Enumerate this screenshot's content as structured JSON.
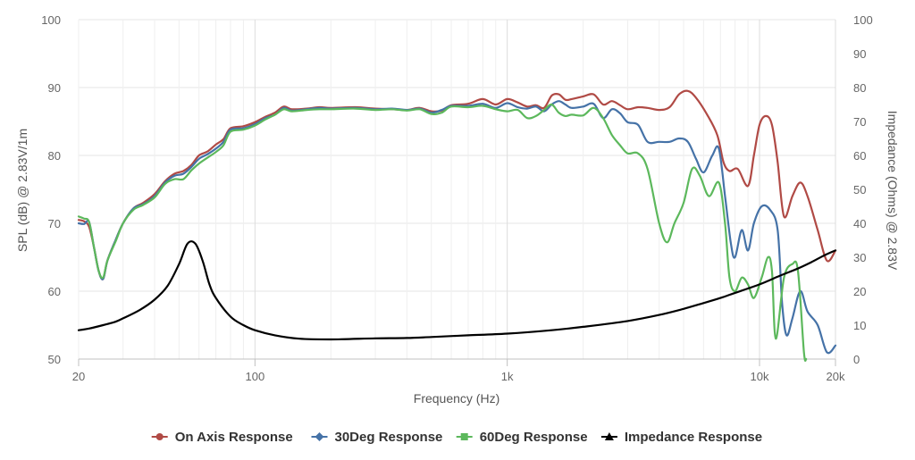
{
  "chart_data": {
    "type": "line",
    "xlabel": "Frequency (Hz)",
    "ylabel_left": "SPL (dB) @ 2.83V/1m",
    "ylabel_right": "Impedance (Ohms) @ 2.83V",
    "x_scale": "log",
    "xlim": [
      20,
      20000
    ],
    "ylim_left": [
      50,
      100
    ],
    "ylim_right": [
      0,
      100
    ],
    "x_ticks": [
      {
        "value": 20,
        "label": "20"
      },
      {
        "value": 100,
        "label": "100"
      },
      {
        "value": 1000,
        "label": "1k"
      },
      {
        "value": 10000,
        "label": "10k"
      },
      {
        "value": 20000,
        "label": "20k"
      }
    ],
    "y_ticks_left": [
      "50",
      "60",
      "70",
      "80",
      "90",
      "100"
    ],
    "y_ticks_right": [
      "0",
      "10",
      "20",
      "30",
      "40",
      "50",
      "60",
      "70",
      "80",
      "90",
      "100"
    ],
    "grid": true,
    "legend_position": "bottom",
    "series": [
      {
        "name": "On Axis Response",
        "color": "#b04a45",
        "marker": "circle",
        "axis": "left",
        "points": [
          [
            20,
            70.5
          ],
          [
            21,
            70.3
          ],
          [
            22,
            69.5
          ],
          [
            23,
            66.5
          ],
          [
            24,
            63
          ],
          [
            25,
            61.8
          ],
          [
            26,
            64.5
          ],
          [
            28,
            67.5
          ],
          [
            30,
            70
          ],
          [
            33,
            72.2
          ],
          [
            36,
            73
          ],
          [
            40,
            74.3
          ],
          [
            44,
            76.2
          ],
          [
            48,
            77.3
          ],
          [
            52,
            77.7
          ],
          [
            56,
            78.6
          ],
          [
            60,
            80
          ],
          [
            65,
            80.6
          ],
          [
            70,
            81.6
          ],
          [
            75,
            82.4
          ],
          [
            80,
            84
          ],
          [
            90,
            84.3
          ],
          [
            100,
            84.9
          ],
          [
            110,
            85.7
          ],
          [
            120,
            86.3
          ],
          [
            130,
            87.2
          ],
          [
            140,
            86.8
          ],
          [
            160,
            86.9
          ],
          [
            180,
            87.1
          ],
          [
            200,
            87
          ],
          [
            250,
            87.1
          ],
          [
            300,
            86.9
          ],
          [
            350,
            86.8
          ],
          [
            400,
            86.7
          ],
          [
            450,
            87
          ],
          [
            500,
            86.5
          ],
          [
            550,
            86.6
          ],
          [
            600,
            87.4
          ],
          [
            700,
            87.6
          ],
          [
            800,
            88.3
          ],
          [
            900,
            87.5
          ],
          [
            1000,
            88.3
          ],
          [
            1100,
            87.8
          ],
          [
            1200,
            87.2
          ],
          [
            1300,
            87.4
          ],
          [
            1400,
            87
          ],
          [
            1500,
            88.8
          ],
          [
            1600,
            89
          ],
          [
            1700,
            88.2
          ],
          [
            1800,
            88.3
          ],
          [
            2000,
            88.7
          ],
          [
            2200,
            89
          ],
          [
            2400,
            87.5
          ],
          [
            2600,
            88
          ],
          [
            2800,
            87.4
          ],
          [
            3000,
            86.8
          ],
          [
            3300,
            87.1
          ],
          [
            3600,
            87
          ],
          [
            4000,
            86.7
          ],
          [
            4400,
            87.1
          ],
          [
            4800,
            89
          ],
          [
            5200,
            89.5
          ],
          [
            5600,
            88.5
          ],
          [
            6200,
            86
          ],
          [
            6800,
            83
          ],
          [
            7200,
            79
          ],
          [
            7600,
            77.7
          ],
          [
            8200,
            78
          ],
          [
            9000,
            75.5
          ],
          [
            9500,
            80
          ],
          [
            10000,
            84.5
          ],
          [
            10600,
            85.8
          ],
          [
            11200,
            84.5
          ],
          [
            11800,
            79
          ],
          [
            12500,
            71
          ],
          [
            13500,
            74
          ],
          [
            14500,
            76
          ],
          [
            15500,
            74
          ],
          [
            17000,
            69
          ],
          [
            18500,
            64.5
          ],
          [
            20000,
            66
          ]
        ]
      },
      {
        "name": "30Deg Response",
        "color": "#4572a7",
        "marker": "diamond",
        "axis": "left",
        "points": [
          [
            20,
            70
          ],
          [
            21,
            69.9
          ],
          [
            22,
            70.2
          ],
          [
            23,
            66.5
          ],
          [
            24,
            63
          ],
          [
            25,
            61.8
          ],
          [
            26,
            64.5
          ],
          [
            28,
            67.5
          ],
          [
            30,
            70
          ],
          [
            33,
            72.2
          ],
          [
            36,
            72.8
          ],
          [
            40,
            74
          ],
          [
            44,
            76
          ],
          [
            48,
            77
          ],
          [
            52,
            77.3
          ],
          [
            56,
            78.3
          ],
          [
            60,
            79.5
          ],
          [
            65,
            80.2
          ],
          [
            70,
            81
          ],
          [
            75,
            82
          ],
          [
            80,
            83.8
          ],
          [
            90,
            84
          ],
          [
            100,
            84.6
          ],
          [
            110,
            85.5
          ],
          [
            120,
            86
          ],
          [
            130,
            87
          ],
          [
            140,
            86.6
          ],
          [
            160,
            86.8
          ],
          [
            180,
            87
          ],
          [
            200,
            86.9
          ],
          [
            250,
            87
          ],
          [
            300,
            86.8
          ],
          [
            350,
            86.9
          ],
          [
            400,
            86.7
          ],
          [
            450,
            86.9
          ],
          [
            500,
            86.3
          ],
          [
            550,
            86.7
          ],
          [
            600,
            87.3
          ],
          [
            700,
            87.3
          ],
          [
            800,
            87.6
          ],
          [
            900,
            87
          ],
          [
            1000,
            87.7
          ],
          [
            1100,
            87.1
          ],
          [
            1200,
            86.9
          ],
          [
            1300,
            87.2
          ],
          [
            1400,
            86.5
          ],
          [
            1500,
            87.5
          ],
          [
            1600,
            88
          ],
          [
            1700,
            87.5
          ],
          [
            1800,
            87
          ],
          [
            2000,
            87.2
          ],
          [
            2200,
            87.6
          ],
          [
            2400,
            85.5
          ],
          [
            2600,
            86.8
          ],
          [
            2800,
            86.2
          ],
          [
            3000,
            84.9
          ],
          [
            3300,
            84.5
          ],
          [
            3600,
            82
          ],
          [
            4000,
            82
          ],
          [
            4400,
            82
          ],
          [
            4800,
            82.5
          ],
          [
            5200,
            82
          ],
          [
            5600,
            79.5
          ],
          [
            6000,
            77.5
          ],
          [
            6500,
            80
          ],
          [
            6900,
            81
          ],
          [
            7300,
            74
          ],
          [
            7700,
            67
          ],
          [
            8000,
            65
          ],
          [
            8500,
            69
          ],
          [
            9000,
            66
          ],
          [
            9500,
            70
          ],
          [
            10200,
            72.5
          ],
          [
            11000,
            72
          ],
          [
            11800,
            69
          ],
          [
            12300,
            58
          ],
          [
            12800,
            53.5
          ],
          [
            13500,
            56
          ],
          [
            14500,
            60
          ],
          [
            15500,
            57
          ],
          [
            17000,
            55
          ],
          [
            18500,
            51
          ],
          [
            20000,
            52
          ]
        ]
      },
      {
        "name": "60Deg Response",
        "color": "#5cb85c",
        "marker": "square",
        "axis": "left",
        "points": [
          [
            20,
            71
          ],
          [
            21,
            70.7
          ],
          [
            22,
            70.2
          ],
          [
            23,
            66.5
          ],
          [
            24,
            63
          ],
          [
            25,
            62
          ],
          [
            26,
            64.5
          ],
          [
            28,
            67.3
          ],
          [
            30,
            70
          ],
          [
            33,
            72
          ],
          [
            36,
            72.7
          ],
          [
            40,
            73.8
          ],
          [
            44,
            75.8
          ],
          [
            48,
            76.5
          ],
          [
            52,
            76.5
          ],
          [
            56,
            77.8
          ],
          [
            60,
            78.8
          ],
          [
            65,
            79.7
          ],
          [
            70,
            80.5
          ],
          [
            75,
            81.5
          ],
          [
            80,
            83.5
          ],
          [
            90,
            83.8
          ],
          [
            100,
            84.4
          ],
          [
            110,
            85.3
          ],
          [
            120,
            86
          ],
          [
            130,
            86.8
          ],
          [
            140,
            86.5
          ],
          [
            160,
            86.7
          ],
          [
            180,
            86.8
          ],
          [
            200,
            86.8
          ],
          [
            250,
            86.9
          ],
          [
            300,
            86.7
          ],
          [
            350,
            86.8
          ],
          [
            400,
            86.6
          ],
          [
            450,
            86.8
          ],
          [
            500,
            86.1
          ],
          [
            550,
            86.3
          ],
          [
            600,
            87.2
          ],
          [
            700,
            87.1
          ],
          [
            800,
            87.3
          ],
          [
            900,
            86.8
          ],
          [
            1000,
            86.5
          ],
          [
            1100,
            86.7
          ],
          [
            1200,
            85.5
          ],
          [
            1300,
            85.8
          ],
          [
            1400,
            86.7
          ],
          [
            1500,
            87.5
          ],
          [
            1600,
            86.3
          ],
          [
            1700,
            85.8
          ],
          [
            1800,
            86
          ],
          [
            2000,
            85.9
          ],
          [
            2200,
            87
          ],
          [
            2400,
            85.5
          ],
          [
            2600,
            83
          ],
          [
            2800,
            81.5
          ],
          [
            3000,
            80.3
          ],
          [
            3300,
            80.3
          ],
          [
            3600,
            78
          ],
          [
            4000,
            70
          ],
          [
            4300,
            67.2
          ],
          [
            4600,
            70
          ],
          [
            5000,
            73
          ],
          [
            5400,
            78
          ],
          [
            5800,
            77
          ],
          [
            6300,
            74
          ],
          [
            6900,
            76
          ],
          [
            7300,
            70
          ],
          [
            7600,
            62
          ],
          [
            8000,
            60
          ],
          [
            8500,
            62
          ],
          [
            9000,
            61
          ],
          [
            9500,
            59
          ],
          [
            10200,
            62
          ],
          [
            10800,
            65
          ],
          [
            11200,
            63
          ],
          [
            11600,
            53
          ],
          [
            12500,
            62
          ],
          [
            13500,
            64
          ],
          [
            14200,
            63
          ],
          [
            15000,
            51
          ],
          [
            15300,
            50
          ]
        ]
      },
      {
        "name": "Impedance Response",
        "color": "#000000",
        "marker": "triangle",
        "axis": "right",
        "points": [
          [
            20,
            8.5
          ],
          [
            22,
            9
          ],
          [
            25,
            10
          ],
          [
            28,
            11
          ],
          [
            30,
            12
          ],
          [
            35,
            14.5
          ],
          [
            40,
            17.5
          ],
          [
            45,
            21.5
          ],
          [
            50,
            28
          ],
          [
            54,
            34
          ],
          [
            58,
            34
          ],
          [
            62,
            29
          ],
          [
            66,
            22
          ],
          [
            70,
            18
          ],
          [
            80,
            12.5
          ],
          [
            90,
            10
          ],
          [
            100,
            8.5
          ],
          [
            120,
            7
          ],
          [
            150,
            6
          ],
          [
            200,
            5.8
          ],
          [
            300,
            6.1
          ],
          [
            400,
            6.2
          ],
          [
            500,
            6.5
          ],
          [
            700,
            7
          ],
          [
            1000,
            7.5
          ],
          [
            1500,
            8.5
          ],
          [
            2000,
            9.5
          ],
          [
            3000,
            11.2
          ],
          [
            4000,
            13
          ],
          [
            5000,
            14.8
          ],
          [
            6000,
            16.5
          ],
          [
            7000,
            18
          ],
          [
            8000,
            19.5
          ],
          [
            10000,
            22
          ],
          [
            12000,
            24.5
          ],
          [
            14000,
            26.5
          ],
          [
            16000,
            28.5
          ],
          [
            18000,
            30.5
          ],
          [
            20000,
            32
          ]
        ]
      }
    ]
  }
}
